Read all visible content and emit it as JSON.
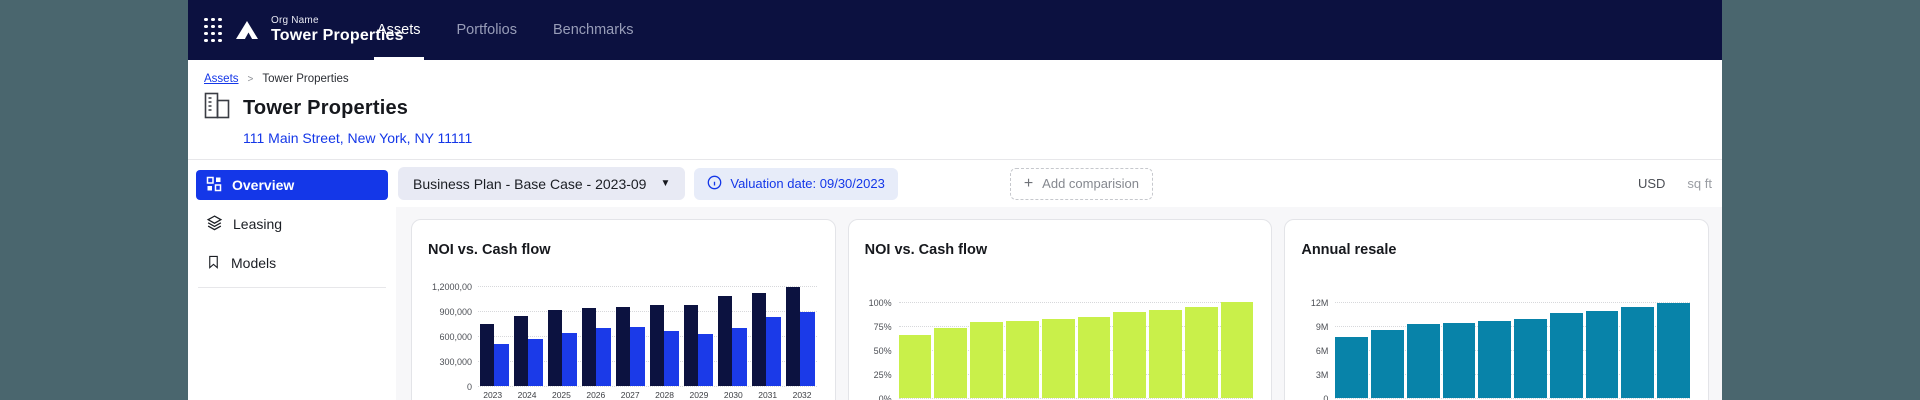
{
  "colors": {
    "accent": "#1437e8",
    "navbar_bg": "#0c1140",
    "backdrop": "#4a666e"
  },
  "navbar": {
    "org_label": "Org Name",
    "org_name": "Tower Properties",
    "tabs": [
      {
        "label": "Assets",
        "active": true
      },
      {
        "label": "Portfolios",
        "active": false
      },
      {
        "label": "Benchmarks",
        "active": false
      }
    ]
  },
  "breadcrumb": {
    "link": "Assets",
    "current": "Tower Properties"
  },
  "page": {
    "title": "Tower Properties",
    "address": "111 Main Street, New York, NY 11111"
  },
  "sidebar": {
    "items": [
      {
        "label": "Overview",
        "active": true
      },
      {
        "label": "Leasing",
        "active": false
      },
      {
        "label": "Models",
        "active": false
      }
    ]
  },
  "toolbar": {
    "scenario": "Business Plan - Base Case - 2023-09",
    "valuation": "Valuation date: 09/30/2023",
    "add_comparison": "Add comparision",
    "currency": "USD",
    "unit": "sq ft"
  },
  "chart_data": [
    {
      "type": "bar",
      "title": "NOI vs. Cash flow",
      "categories": [
        "2023",
        "2024",
        "2025",
        "2026",
        "2027",
        "2028",
        "2029",
        "2030",
        "2031",
        "2032"
      ],
      "series": [
        {
          "name": "NOI",
          "color": "#0c1240",
          "values": [
            750000,
            840000,
            910000,
            935000,
            950000,
            970000,
            970000,
            1080000,
            1120000,
            1190000
          ]
        },
        {
          "name": "Cash flow",
          "color": "#1b3ae8",
          "values": [
            500000,
            560000,
            640000,
            700000,
            710000,
            665000,
            620000,
            695000,
            830000,
            890000
          ]
        }
      ],
      "ylim": [
        0,
        1200000
      ],
      "yticks": [
        "1,2000,00",
        "900,000",
        "600,000",
        "300,000",
        "0"
      ],
      "grid": true,
      "legend": "none"
    },
    {
      "type": "bar",
      "title": "NOI vs. Cash flow",
      "categories": [],
      "series": [
        {
          "name": "NOI %",
          "color": "#c9f04a",
          "values": [
            66,
            73,
            79,
            80,
            82,
            84,
            90,
            92,
            95,
            100
          ]
        }
      ],
      "ylim": [
        0,
        100
      ],
      "yticks": [
        "100%",
        "75%",
        "50%",
        "25%",
        "0%"
      ],
      "grid": true,
      "legend": "none"
    },
    {
      "type": "bar",
      "title": "Annual resale",
      "categories": [],
      "series": [
        {
          "name": "Annual resale",
          "color": "#0883a9",
          "values": [
            7.6,
            8.5,
            9.2,
            9.4,
            9.6,
            9.9,
            10.6,
            10.9,
            11.4,
            11.9
          ]
        }
      ],
      "ylim": [
        0,
        12
      ],
      "yticks": [
        "12M",
        "9M",
        "6M",
        "3M",
        "0"
      ],
      "grid": true,
      "legend": "none"
    }
  ]
}
